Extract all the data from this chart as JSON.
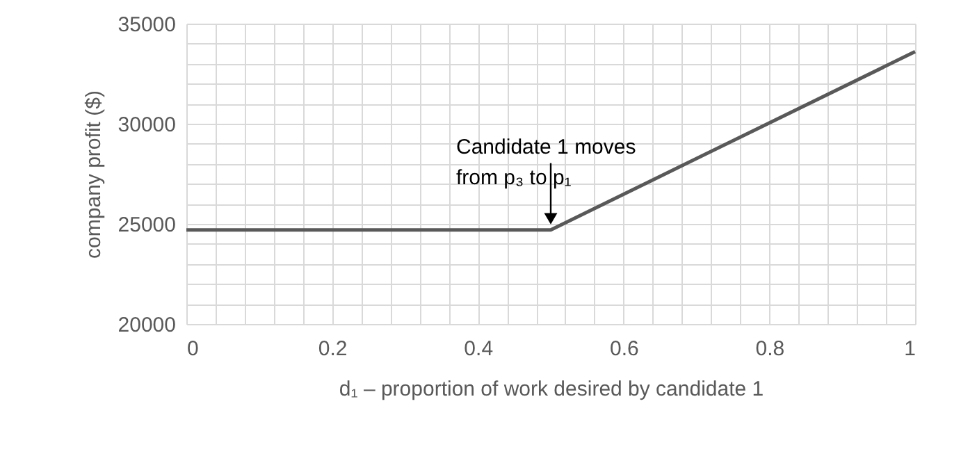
{
  "chart_data": {
    "type": "line",
    "xlabel": "d₁ – proportion of work desired by candidate 1",
    "ylabel": "company profit ($)",
    "x": [
      0,
      0.5,
      1
    ],
    "series": [
      {
        "color": "#595959",
        "values": [
          24700,
          24700,
          33600
        ]
      }
    ],
    "xlim": [
      0,
      1
    ],
    "xticks": [
      0,
      {
        "value": 0.04,
        "label": null
      },
      {
        "value": 0.08,
        "label": null
      },
      {
        "value": 0.12,
        "label": null
      },
      {
        "value": 0.16,
        "label": null
      },
      0.2,
      {
        "value": 0.24,
        "label": null
      },
      {
        "value": 0.28,
        "label": null
      },
      {
        "value": 0.32,
        "label": null
      },
      {
        "value": 0.36,
        "label": null
      },
      0.4,
      {
        "value": 0.44,
        "label": null
      },
      {
        "value": 0.48,
        "label": null
      },
      {
        "value": 0.52,
        "label": null
      },
      {
        "value": 0.56,
        "label": null
      },
      0.6,
      {
        "value": 0.64,
        "label": null
      },
      {
        "value": 0.68,
        "label": null
      },
      {
        "value": 0.72,
        "label": null
      },
      {
        "value": 0.76,
        "label": null
      },
      0.8,
      {
        "value": 0.84,
        "label": null
      },
      {
        "value": 0.88,
        "label": null
      },
      {
        "value": 0.92,
        "label": null
      },
      {
        "value": 0.96,
        "label": null
      },
      1
    ],
    "ylim": [
      20000,
      35000
    ],
    "yticks": [
      20000,
      {
        "value": 21000,
        "label": null
      },
      {
        "value": 22000,
        "label": null
      },
      {
        "value": 23000,
        "label": null
      },
      {
        "value": 24000,
        "label": null
      },
      25000,
      {
        "value": 26000,
        "label": null
      },
      {
        "value": 27000,
        "label": null
      },
      {
        "value": 28000,
        "label": null
      },
      {
        "value": 29000,
        "label": null
      },
      30000,
      {
        "value": 31000,
        "label": null
      },
      {
        "value": 32000,
        "label": null
      },
      {
        "value": 33000,
        "label": null
      },
      {
        "value": 34000,
        "label": null
      },
      35000
    ],
    "grid": true,
    "marker": "none",
    "line_style": "solid",
    "annotations": [
      {
        "text": "Candidate 1 moves\nfrom p₃ to p₁",
        "x": 0.5,
        "y": 24700
      }
    ]
  }
}
